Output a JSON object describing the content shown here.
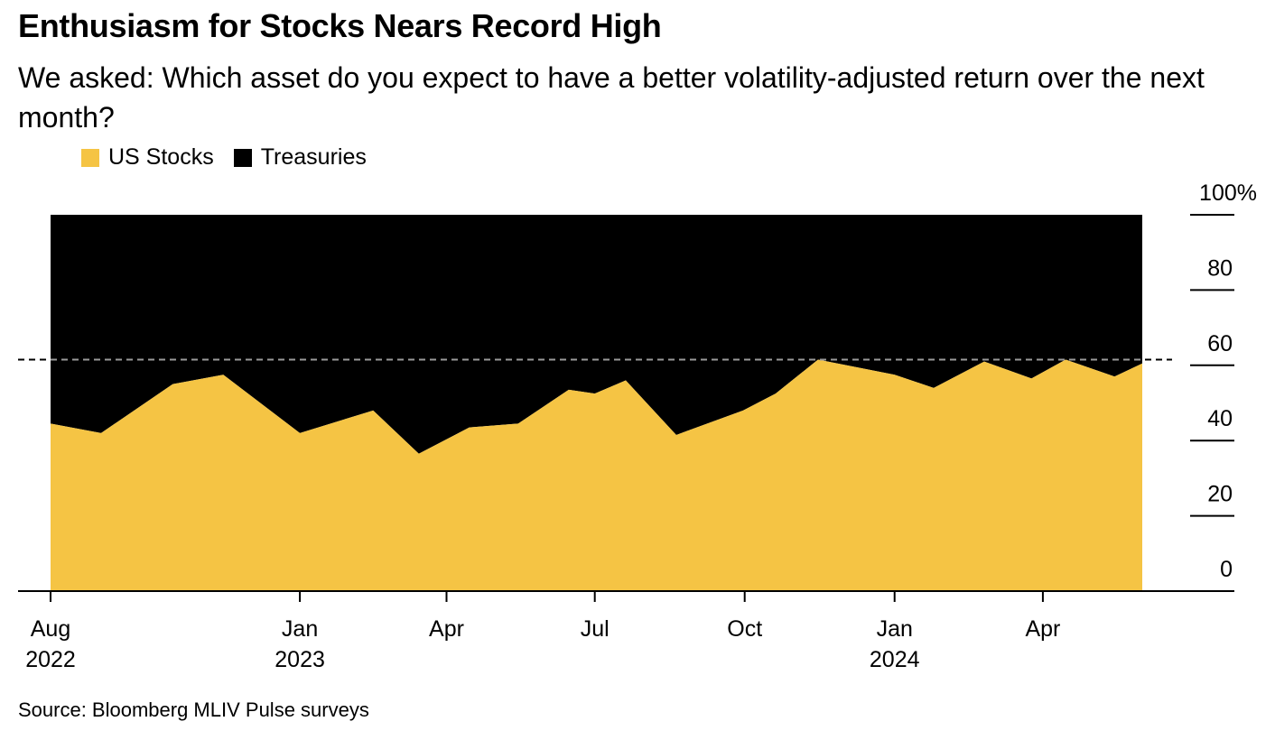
{
  "header": {
    "title": "Enthusiasm for Stocks Nears Record High",
    "subtitle": "We asked: Which asset do you expect to have a better volatility-adjusted return over the next month?"
  },
  "legend": {
    "items": [
      {
        "label": "US Stocks",
        "color": "#F5C444"
      },
      {
        "label": "Treasuries",
        "color": "#000000"
      }
    ]
  },
  "footer": {
    "source": "Source: Bloomberg MLIV Pulse surveys"
  },
  "chart_data": {
    "type": "area",
    "stacked": true,
    "x": [
      "2022-08-01",
      "2022-09-01",
      "2022-10-15",
      "2022-11-15",
      "2023-01-01",
      "2023-02-15",
      "2023-03-15",
      "2023-04-15",
      "2023-05-15",
      "2023-06-15",
      "2023-07-01",
      "2023-07-20",
      "2023-08-20",
      "2023-09-30",
      "2023-10-20",
      "2023-11-15",
      "2024-01-01",
      "2024-01-25",
      "2024-02-25",
      "2024-03-25",
      "2024-04-15",
      "2024-05-15",
      "2024-06-01"
    ],
    "series": [
      {
        "name": "US Stocks",
        "color": "#F5C444",
        "values": [
          44.5,
          42,
          55,
          57.5,
          42,
          48,
          36.5,
          43.5,
          44.5,
          53.5,
          52.5,
          56,
          41.5,
          48,
          52.5,
          61.5,
          57.5,
          54,
          61,
          56.5,
          61.5,
          57,
          60.5
        ]
      },
      {
        "name": "Treasuries",
        "color": "#000000",
        "values": [
          55.5,
          58,
          45,
          42.5,
          58,
          52,
          63.5,
          56.5,
          55.5,
          46.5,
          47.5,
          44,
          58.5,
          52,
          47.5,
          38.5,
          42.5,
          46,
          39,
          43.5,
          38.5,
          43,
          39.5
        ]
      }
    ],
    "y_ticks": [
      0,
      20,
      40,
      60,
      80,
      100
    ],
    "y_tick_labels": [
      "0",
      "20",
      "40",
      "60",
      "80",
      "100%"
    ],
    "ylim": [
      0,
      100
    ],
    "reference_line": {
      "value": 61.5,
      "style": "dashed"
    },
    "x_ticks": [
      {
        "date": "2022-08-01",
        "month": "Aug",
        "year": "2022"
      },
      {
        "date": "2023-01-01",
        "month": "Jan",
        "year": "2023"
      },
      {
        "date": "2023-04-01",
        "month": "Apr",
        "year": ""
      },
      {
        "date": "2023-07-01",
        "month": "Jul",
        "year": ""
      },
      {
        "date": "2023-10-01",
        "month": "Oct",
        "year": ""
      },
      {
        "date": "2024-01-01",
        "month": "Jan",
        "year": "2024"
      },
      {
        "date": "2024-04-01",
        "month": "Apr",
        "year": ""
      }
    ],
    "y_axis_position": "right",
    "legend_position": "top-left",
    "grid": false
  }
}
